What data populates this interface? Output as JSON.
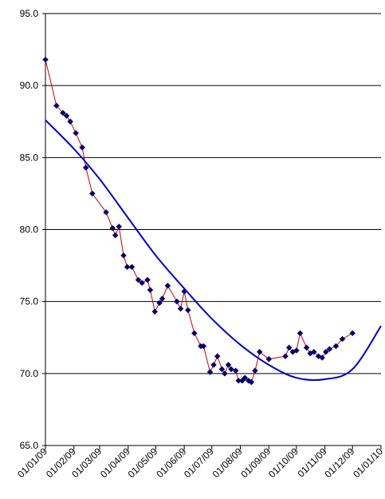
{
  "chart_data": {
    "type": "line",
    "title": "",
    "xlabel": "",
    "ylabel": "",
    "ylim": [
      65.0,
      95.0
    ],
    "yticks": [
      "65.0",
      "70.0",
      "75.0",
      "80.0",
      "85.0",
      "90.0",
      "95.0"
    ],
    "xlim": [
      "2009-01-01",
      "2010-01-01"
    ],
    "xtick_labels": [
      "01/01/09",
      "01/02/09",
      "01/03/09",
      "01/04/09",
      "01/05/09",
      "01/06/09",
      "01/07/09",
      "01/08/09",
      "01/09/09",
      "01/10/09",
      "01/11/09",
      "01/12/09",
      "01/01/10"
    ],
    "grid": "horizontal",
    "colors": {
      "data_line": "#cc0000",
      "marker": "#00006e",
      "trend": "#0000cc",
      "grid": "#000000"
    },
    "series": [
      {
        "kind": "data",
        "x": [
          "2009-01-01",
          "2009-01-13",
          "2009-01-20",
          "2009-01-24",
          "2009-01-28",
          "2009-02-03",
          "2009-02-10",
          "2009-02-14",
          "2009-02-21",
          "2009-03-08",
          "2009-03-15",
          "2009-03-18",
          "2009-03-22",
          "2009-03-27",
          "2009-03-31",
          "2009-04-05",
          "2009-04-12",
          "2009-04-16",
          "2009-04-22",
          "2009-04-25",
          "2009-04-30",
          "2009-05-05",
          "2009-05-08",
          "2009-05-14",
          "2009-05-24",
          "2009-05-28",
          "2009-06-01",
          "2009-06-05",
          "2009-06-12",
          "2009-06-19",
          "2009-06-22",
          "2009-06-29",
          "2009-07-03",
          "2009-07-07",
          "2009-07-12",
          "2009-07-15",
          "2009-07-19",
          "2009-07-22",
          "2009-07-27",
          "2009-07-30",
          "2009-08-03",
          "2009-08-06",
          "2009-08-10",
          "2009-08-13",
          "2009-08-17",
          "2009-08-22",
          "2009-09-01",
          "2009-09-19",
          "2009-09-23",
          "2009-09-27",
          "2009-10-01",
          "2009-10-05",
          "2009-10-12",
          "2009-10-16",
          "2009-10-20",
          "2009-10-25",
          "2009-10-29",
          "2009-11-02",
          "2009-11-06",
          "2009-11-13",
          "2009-11-20",
          "2009-12-01"
        ],
        "y": [
          91.8,
          88.6,
          88.1,
          87.9,
          87.5,
          86.7,
          85.7,
          84.3,
          82.5,
          81.2,
          80.1,
          79.6,
          80.2,
          78.2,
          77.4,
          77.4,
          76.5,
          76.3,
          76.5,
          75.8,
          74.3,
          74.9,
          75.2,
          76.1,
          75.0,
          74.5,
          75.7,
          74.4,
          72.8,
          71.9,
          71.9,
          70.1,
          70.6,
          71.2,
          70.3,
          70.0,
          70.6,
          70.3,
          70.2,
          69.5,
          69.5,
          69.7,
          69.5,
          69.4,
          70.2,
          71.5,
          71.0,
          71.2,
          71.8,
          71.5,
          71.6,
          72.8,
          71.8,
          71.4,
          71.5,
          71.2,
          71.1,
          71.5,
          71.7,
          71.9,
          72.4,
          72.8
        ]
      },
      {
        "kind": "trend",
        "x": [
          "2009-01-01",
          "2009-02-01",
          "2009-03-01",
          "2009-04-01",
          "2009-05-01",
          "2009-06-01",
          "2009-07-01",
          "2009-08-01",
          "2009-09-01",
          "2009-10-01",
          "2009-11-01",
          "2009-12-01",
          "2010-01-01"
        ],
        "y": [
          87.6,
          85.6,
          83.5,
          80.8,
          78.2,
          75.9,
          73.8,
          72.0,
          70.6,
          69.7,
          69.6,
          70.3,
          73.3
        ]
      }
    ]
  }
}
